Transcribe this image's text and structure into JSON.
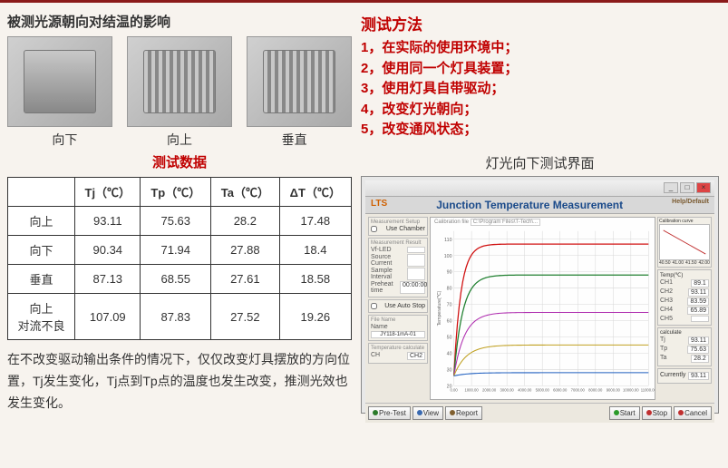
{
  "left": {
    "title": "被测光源朝向对结温的影响",
    "labels": [
      "向下",
      "向上",
      "垂直"
    ],
    "data_subtitle": "测试数据",
    "table": {
      "columns": [
        "",
        "Tj（℃）",
        "Tp（℃）",
        "Ta（℃）",
        "ΔT（℃）"
      ],
      "rows": [
        [
          "向上",
          "93.11",
          "75.63",
          "28.2",
          "17.48"
        ],
        [
          "向下",
          "90.34",
          "71.94",
          "27.88",
          "18.4"
        ],
        [
          "垂直",
          "87.13",
          "68.55",
          "27.61",
          "18.58"
        ],
        [
          "向上\n对流不良",
          "107.09",
          "87.83",
          "27.52",
          "19.26"
        ]
      ]
    },
    "paragraph": "在不改变驱动输出条件的情况下，仅仅改变灯具摆放的方向位置，Tj发生变化，Tj点到Tp点的温度也发生改变，推测光效也发生变化。"
  },
  "right": {
    "method_title": "测试方法",
    "methods": [
      "1，在实际的使用环境中；",
      "2，使用同一个灯具装置；",
      "3，使用灯具自带驱动；",
      "4，改变灯光朝向；",
      "5，改变通风状态；"
    ],
    "shot_title": "灯光向下测试界面",
    "app": {
      "window_title": "Junction Temperature Measurement",
      "logo": "LTS",
      "left_panels": {
        "measurement_setup": "Measurement Setup",
        "use_chamber": "Use Chamber",
        "calibration_file": "Calibration file",
        "calibration_path": "C:\\Program Files\\T-Tech\\...",
        "measurement_result": "Measurement Result",
        "vf_led": {
          "label": "Vf-LED",
          "value": ""
        },
        "source_current": {
          "label": "Source Current",
          "value": ""
        },
        "sample_interval": {
          "label": "Sample Interval",
          "value": ""
        },
        "preheat_time": {
          "label": "Preheat time",
          "value": "00:00:00"
        },
        "use_auto_stop": "Use Auto Stop",
        "file_name": "File Name",
        "name": "Name",
        "name_val": "JY118-1mA-01",
        "temp_calculate": "Temperature calculate",
        "ch": {
          "label": "CH",
          "value": "CH2"
        }
      },
      "chart": {
        "xlim": [
          0,
          11000
        ],
        "ylim": [
          20,
          115
        ],
        "xtick_step": 1000,
        "ytick_step": 10,
        "ylabel": "Temperature(℃)",
        "background_color": "#ffffff",
        "grid_color": "#d8d8d8",
        "curves": [
          {
            "color": "#d01010",
            "width": 1.2,
            "y_start": 26,
            "y_end": 107,
            "rise": 400
          },
          {
            "color": "#208030",
            "width": 1.2,
            "y_start": 26,
            "y_end": 88,
            "rise": 500
          },
          {
            "color": "#b030b0",
            "width": 1,
            "y_start": 26,
            "y_end": 65,
            "rise": 600
          },
          {
            "color": "#c0a020",
            "width": 1,
            "y_start": 26,
            "y_end": 45,
            "rise": 700
          },
          {
            "color": "#2060c0",
            "width": 1,
            "y_start": 26,
            "y_end": 28,
            "rise": 800
          }
        ]
      },
      "right_panels": {
        "calibration_curve": "Calibration curve",
        "raw_data": "Raw data",
        "xticks": [
          "40.50",
          "41.00",
          "41.50",
          "42.00"
        ],
        "temp_label": "Temp(℃)",
        "ch_vals": [
          {
            "ch": "CH1",
            "v": "89.1"
          },
          {
            "ch": "CH2",
            "v": "93.11"
          },
          {
            "ch": "CH3",
            "v": "83.59"
          },
          {
            "ch": "CH4",
            "v": "65.89"
          },
          {
            "ch": "CH5",
            "v": ""
          }
        ],
        "calculate": "calculate",
        "tj_vals": [
          {
            "l": "Tj",
            "v": "93.11"
          },
          {
            "l": "Tp",
            "v": "75.63"
          },
          {
            "l": "Ta",
            "v": "28.2"
          }
        ],
        "currently": "Currently",
        "currently_val": "93.11"
      },
      "footer": {
        "left_btns": [
          {
            "label": "Pre-Test",
            "icon": "#2a7a2a"
          },
          {
            "label": "View",
            "icon": "#3a6ab0"
          },
          {
            "label": "Report",
            "icon": "#806030"
          }
        ],
        "right_btns": [
          {
            "label": "Start",
            "icon": "#2a9a2a"
          },
          {
            "label": "Stop",
            "icon": "#c03030"
          },
          {
            "label": "Cancel",
            "icon": "#c03030"
          }
        ]
      }
    }
  },
  "colors": {
    "accent": "#c00000",
    "rule": "#8b1a1a",
    "bg": "#f7f3ee"
  }
}
